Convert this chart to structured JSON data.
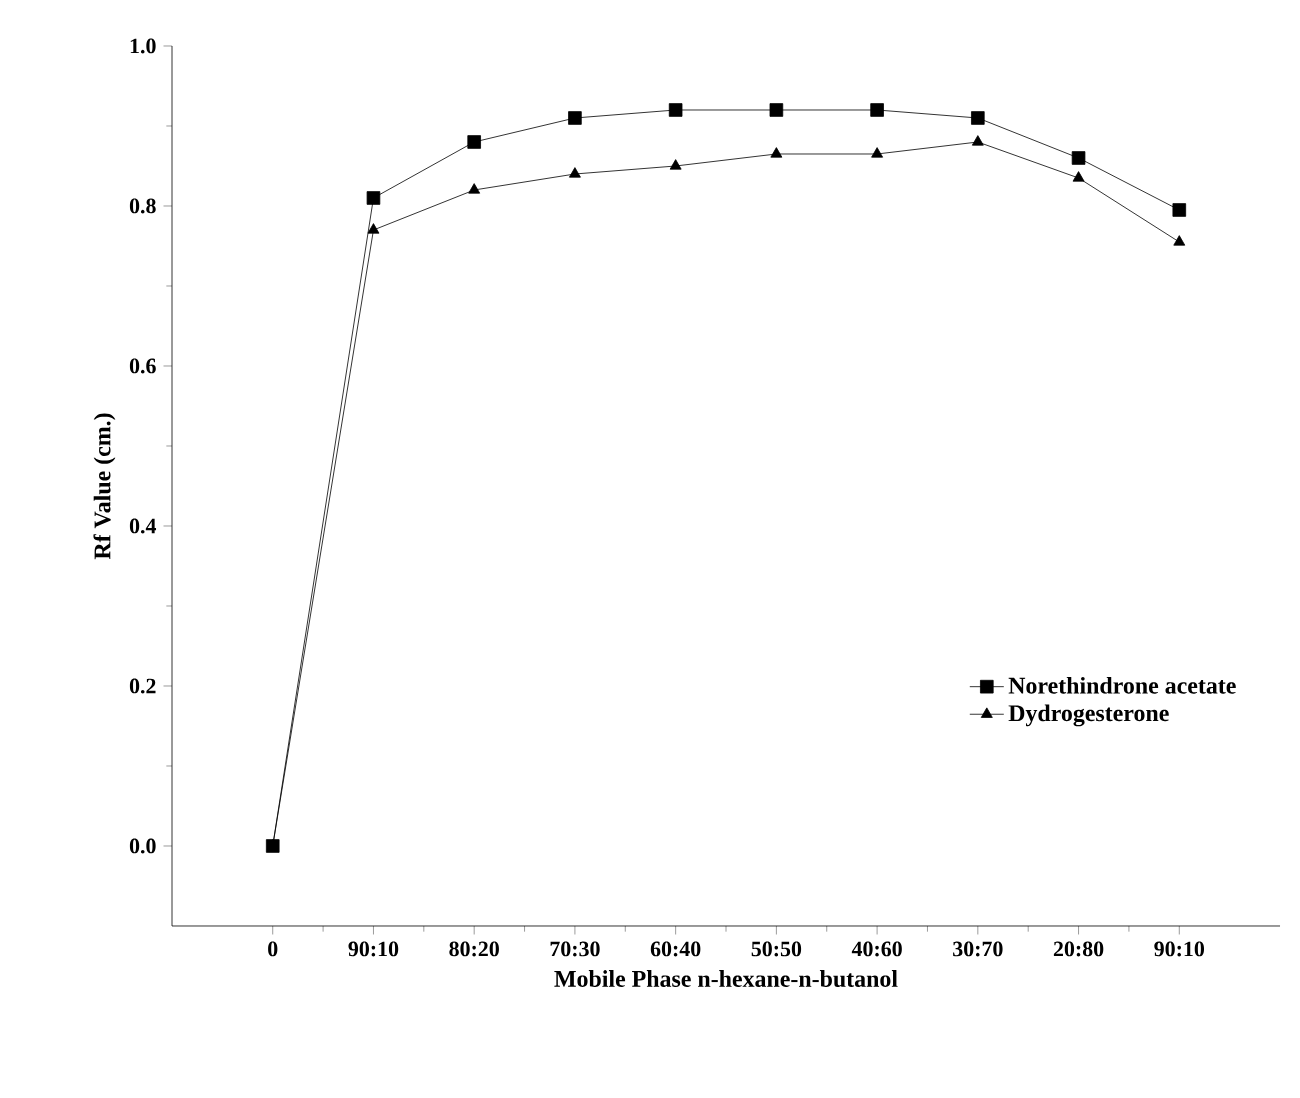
{
  "chart_data": {
    "type": "line",
    "xlabel": "Mobile Phase n-hexane-n-butanol",
    "ylabel": "Rf Value (cm.)",
    "categories": [
      "0",
      "90:10",
      "80:20",
      "70:30",
      "60:40",
      "50:50",
      "40:60",
      "30:70",
      "20:80",
      "90:10"
    ],
    "ylim": [
      -0.1,
      1.0
    ],
    "yticks": [
      {
        "value": 0.0,
        "label": "0.0"
      },
      0.2,
      0.4,
      0.6,
      0.8,
      {
        "value": 1.0,
        "label": "1.0"
      }
    ],
    "series": [
      {
        "name": "Norethindrone acetate",
        "color": "#000000",
        "marker": "square",
        "values": [
          0,
          0.81,
          0.88,
          0.91,
          0.92,
          0.92,
          0.92,
          0.91,
          0.86,
          0.795
        ]
      },
      {
        "name": "Dydrogesterone",
        "color": "#000000",
        "marker": "triangle",
        "values": [
          0,
          0.77,
          0.82,
          0.84,
          0.85,
          0.865,
          0.865,
          0.88,
          0.835,
          0.755
        ]
      }
    ],
    "grid": false,
    "legend": "bottom right",
    "line_style": "solid"
  }
}
